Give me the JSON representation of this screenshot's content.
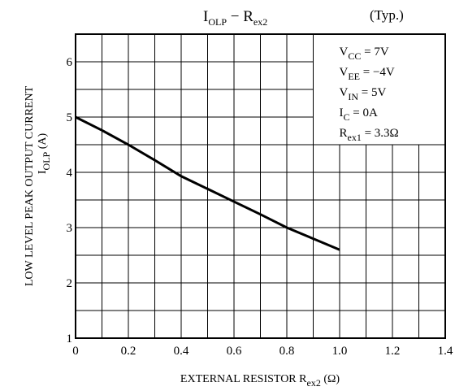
{
  "chart_data": {
    "type": "line",
    "title": [
      {
        "text": "I"
      },
      {
        "text": "OLP",
        "sub": true
      },
      {
        "text": " − R"
      },
      {
        "text": "ex2",
        "sub": true
      }
    ],
    "title_note": "(Typ.)",
    "y_label": [
      [
        {
          "text": "LOW LEVEL  PEAK  OUTPUT  CURRENT"
        }
      ],
      [
        {
          "text": "I"
        },
        {
          "text": "OLP",
          "sub": true
        },
        {
          "text": "  (A)"
        }
      ]
    ],
    "x_label": [
      {
        "text": "EXTERNAL RESISTOR   R"
      },
      {
        "text": "ex2",
        "sub": true
      },
      {
        "text": "   (Ω)"
      }
    ],
    "annotations": [
      [
        {
          "text": "V"
        },
        {
          "text": "CC",
          "sub": true
        },
        {
          "text": " = 7V"
        }
      ],
      [
        {
          "text": "V"
        },
        {
          "text": "EE",
          "sub": true
        },
        {
          "text": " = −4V"
        }
      ],
      [
        {
          "text": "V"
        },
        {
          "text": "IN",
          "sub": true
        },
        {
          "text": " = 5V"
        }
      ],
      [
        {
          "text": "I"
        },
        {
          "text": "C",
          "sub": true
        },
        {
          "text": " = 0A"
        }
      ],
      [
        {
          "text": "R"
        },
        {
          "text": "ex1",
          "sub": true
        },
        {
          "text": " = 3.3Ω"
        }
      ]
    ],
    "x": [
      0,
      0.1,
      0.2,
      0.3,
      0.4,
      0.5,
      0.6,
      0.7,
      0.8,
      0.9,
      1.0
    ],
    "series": [
      {
        "color": "#000000",
        "values": [
          5.0,
          4.76,
          4.5,
          4.22,
          3.93,
          3.7,
          3.47,
          3.24,
          3.0,
          2.8,
          2.6
        ]
      }
    ],
    "xlim": [
      0,
      1.4
    ],
    "xticks": [
      {
        "value": 0,
        "label": "0"
      },
      0.2,
      0.4,
      0.6,
      0.8,
      {
        "value": 1,
        "label": "1.0"
      },
      1.2,
      1.4
    ],
    "ylim": [
      1,
      6.5
    ],
    "yticks": [
      1,
      2,
      3,
      4,
      5,
      6
    ],
    "grid": true
  }
}
